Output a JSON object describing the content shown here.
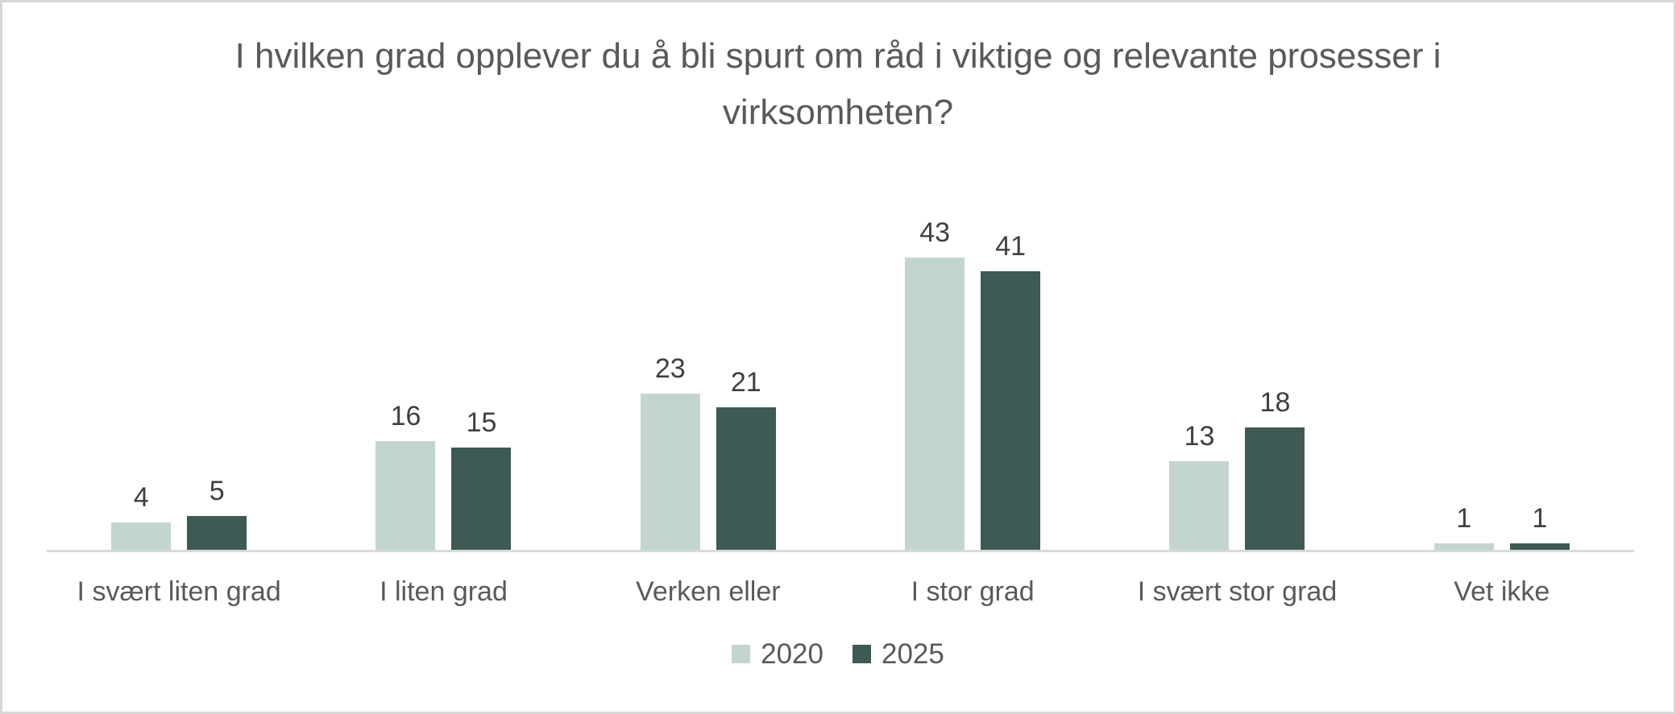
{
  "chart_data": {
    "type": "bar",
    "title": "I hvilken grad opplever du å bli spurt om råd i viktige og relevante prosesser i virksomheten?",
    "categories": [
      "I svært liten grad",
      "I liten grad",
      "Verken eller",
      "I stor grad",
      "I svært stor grad",
      "Vet ikke"
    ],
    "series": [
      {
        "name": "2020",
        "color": "#c3d5d1",
        "values": [
          4,
          16,
          23,
          43,
          13,
          1
        ]
      },
      {
        "name": "2025",
        "color": "#3d5a54",
        "values": [
          5,
          15,
          21,
          41,
          18,
          1
        ]
      }
    ],
    "xlabel": "",
    "ylabel": "",
    "ylim": [
      0,
      50
    ],
    "grid": false,
    "data_labels": true,
    "legend_position": "bottom",
    "colors": {
      "axis_line": "#d9d9d9",
      "frame_border": "#d7d7d7",
      "title_text": "#595959",
      "data_label_text": "#404040",
      "category_label_text": "#595959",
      "legend_text": "#595959",
      "background": "#ffffff"
    }
  }
}
